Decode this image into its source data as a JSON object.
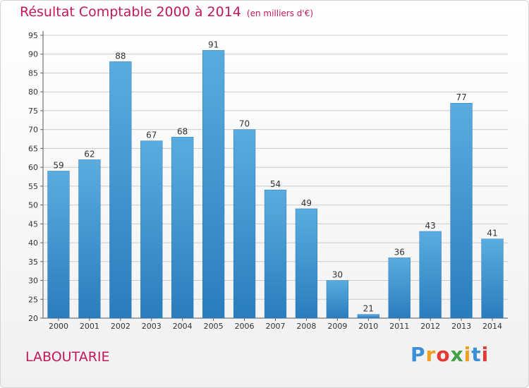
{
  "header": {
    "title": "Résultat Comptable 2000 à 2014",
    "unit": "(en milliers d'€)"
  },
  "footer": {
    "commune": "LABOUTARIE",
    "logo": [
      "P",
      "r",
      "o",
      "x",
      "i",
      "t",
      "i"
    ]
  },
  "colors": {
    "bar_top": "#5aacdf",
    "bar_bottom": "#2a7dbd",
    "title": "#c2185b",
    "grid": "#cccccc"
  },
  "logo_colors": [
    "#3a8fd6",
    "#f0a020",
    "#e53935",
    "#43a047",
    "#f0a020",
    "#3a8fd6",
    "#e53935"
  ],
  "chart_data": {
    "type": "bar",
    "title": "Résultat Comptable 2000 à 2014",
    "xlabel": "",
    "ylabel": "",
    "categories": [
      "2000",
      "2001",
      "2002",
      "2003",
      "2004",
      "2005",
      "2006",
      "2007",
      "2008",
      "2009",
      "2010",
      "2011",
      "2012",
      "2013",
      "2014"
    ],
    "values": [
      59,
      62,
      88,
      67,
      68,
      91,
      70,
      54,
      49,
      30,
      21,
      36,
      43,
      77,
      41
    ],
    "ylim": [
      20,
      95
    ],
    "yticks": [
      20,
      25,
      30,
      35,
      40,
      45,
      50,
      55,
      60,
      65,
      70,
      75,
      80,
      85,
      90,
      95
    ],
    "grid": true
  }
}
